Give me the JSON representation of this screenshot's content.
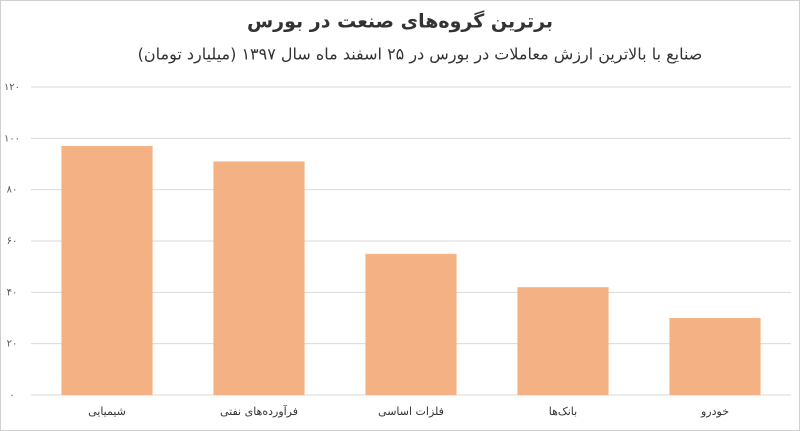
{
  "chart_data": {
    "type": "bar",
    "title": "برترین گروه‌های صنعت در بورس",
    "subtitle": "صنایع با بالاترین ارزش معاملات در بورس در ۲۵ اسفند ماه سال ۱۳۹۷ (میلیارد تومان)",
    "categories": [
      "شیمیایی",
      "فرآورده‌های نفتی",
      "فلزات اساسی",
      "بانک‌ها",
      "خودرو"
    ],
    "values": [
      97,
      91,
      55,
      42,
      30
    ],
    "color": "#f4b183",
    "ylim": [
      0,
      120
    ],
    "yticks": [
      {
        "value": 0,
        "label": "۰"
      },
      {
        "value": 20,
        "label": "۲۰"
      },
      {
        "value": 40,
        "label": "۴۰"
      },
      {
        "value": 60,
        "label": "۶۰"
      },
      {
        "value": 80,
        "label": "۸۰"
      },
      {
        "value": 100,
        "label": "۱۰۰"
      },
      {
        "value": 120,
        "label": "۱۲۰"
      }
    ],
    "grid": true
  }
}
